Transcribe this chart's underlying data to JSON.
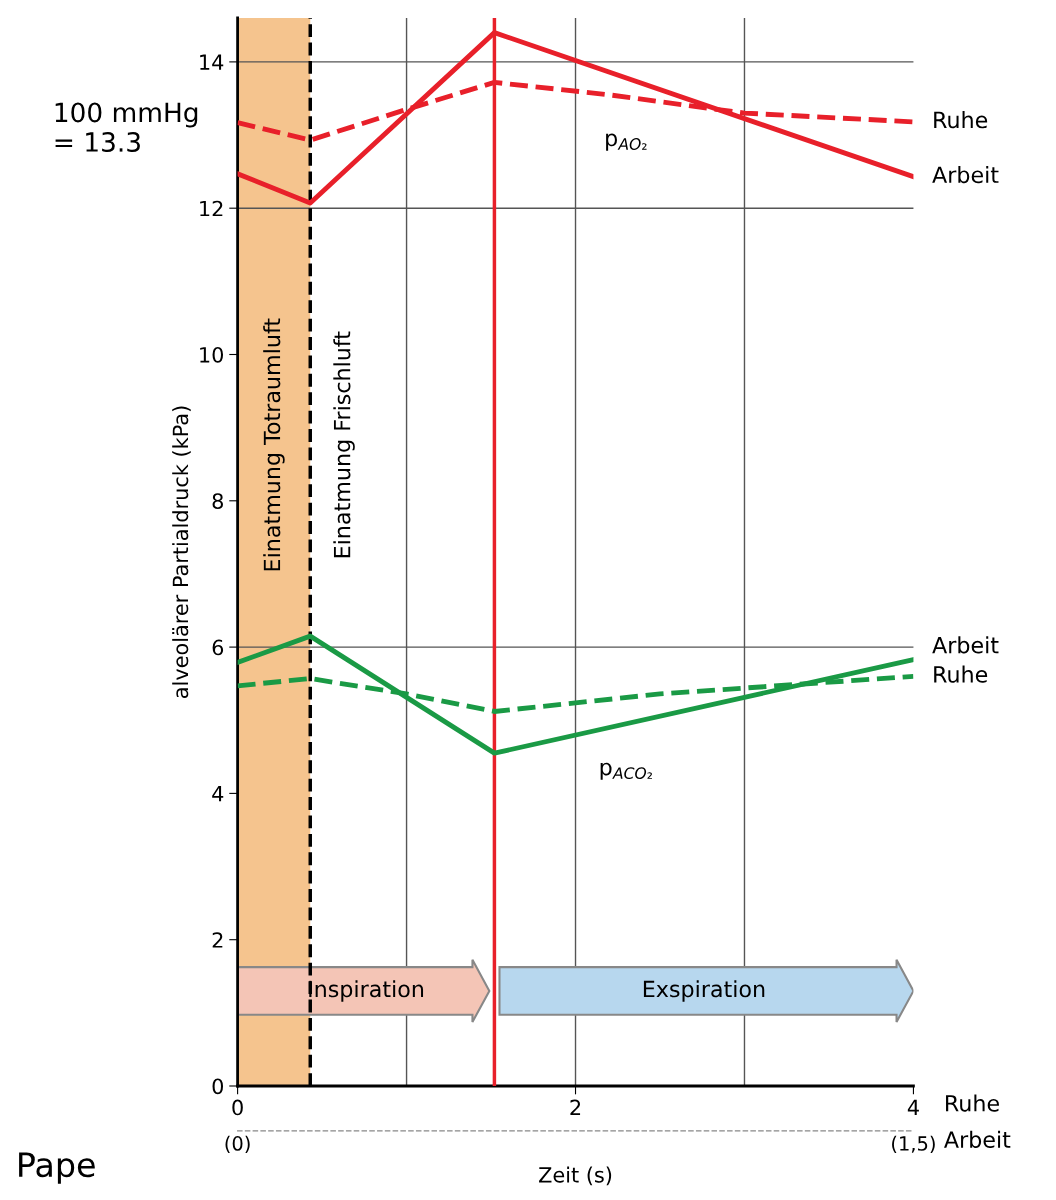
{
  "chart_data": {
    "type": "line",
    "xlabel": "Zeit (s)",
    "ylabel": "alveolärer Partialdruck (kPa)",
    "xlim": [
      0,
      4
    ],
    "xticks": [
      0,
      2,
      4
    ],
    "ylim": [
      0,
      14.6
    ],
    "yticks": [
      0,
      2,
      4,
      6,
      8,
      10,
      12,
      14
    ],
    "x2lim": [
      0,
      1.5
    ],
    "x2ticks": [
      {
        "value": 0,
        "label": "(0)"
      },
      {
        "value": 1.5,
        "label": "(1,5)"
      }
    ],
    "grid": false,
    "legend": false,
    "marker": "none",
    "series": [
      {
        "name": "Ruhe",
        "color": "#e8202a",
        "line_style": "dashed",
        "x": [
          0,
          0.43,
          1.0,
          1.52,
          2.2,
          3.0,
          4.0
        ],
        "values": [
          13.17,
          12.93,
          13.35,
          13.72,
          13.55,
          13.3,
          13.18
        ]
      },
      {
        "name": "Arbeit",
        "color": "#e8202a",
        "line_style": "solid",
        "x": [
          0,
          0.43,
          1.52,
          4.0
        ],
        "values": [
          12.47,
          12.07,
          14.4,
          12.43
        ]
      },
      {
        "name": "Arbeit",
        "color": "#1a9a45",
        "line_style": "solid",
        "x": [
          0,
          0.43,
          1.52,
          4.0
        ],
        "values": [
          5.79,
          6.15,
          4.55,
          5.83
        ]
      },
      {
        "name": "Ruhe",
        "color": "#1a9a45",
        "line_style": "dashed",
        "x": [
          0,
          0.43,
          1.0,
          1.52,
          2.5,
          4.0
        ],
        "values": [
          5.47,
          5.57,
          5.36,
          5.12,
          5.36,
          5.6
        ]
      }
    ],
    "bands": [
      {
        "axis": "x",
        "from": 0,
        "to": 0.43,
        "color": "#f5c48e"
      }
    ],
    "ref_lines": [
      {
        "axis": "x",
        "value": 0.43,
        "color": "#000000",
        "line_style": "dashed"
      },
      {
        "axis": "x",
        "value": 1.52,
        "color": "#e8202a",
        "line_style": "solid"
      },
      {
        "axis": "x",
        "value": 1,
        "color": "#555555",
        "line_style": "solid"
      },
      {
        "axis": "x",
        "value": 2,
        "color": "#555555",
        "line_style": "solid"
      },
      {
        "axis": "x",
        "value": 3,
        "color": "#555555",
        "line_style": "solid"
      },
      {
        "axis": "y",
        "value": 12,
        "color": "#555555",
        "line_style": "solid"
      },
      {
        "axis": "y",
        "value": 6,
        "color": "#555555",
        "line_style": "solid"
      },
      {
        "axis": "y",
        "value": 14,
        "color": "#555555",
        "line_style": "solid"
      }
    ],
    "annotations": [
      "100 mmHg\n= 13.3",
      "Einatmung Totraumluft",
      "Einatmung Frischluft",
      "p$_{AO₂}$",
      "p$_{ACO₂}$",
      "Inspiration",
      "Exspiration",
      "Ruhe",
      "Arbeit",
      "Pape"
    ]
  }
}
